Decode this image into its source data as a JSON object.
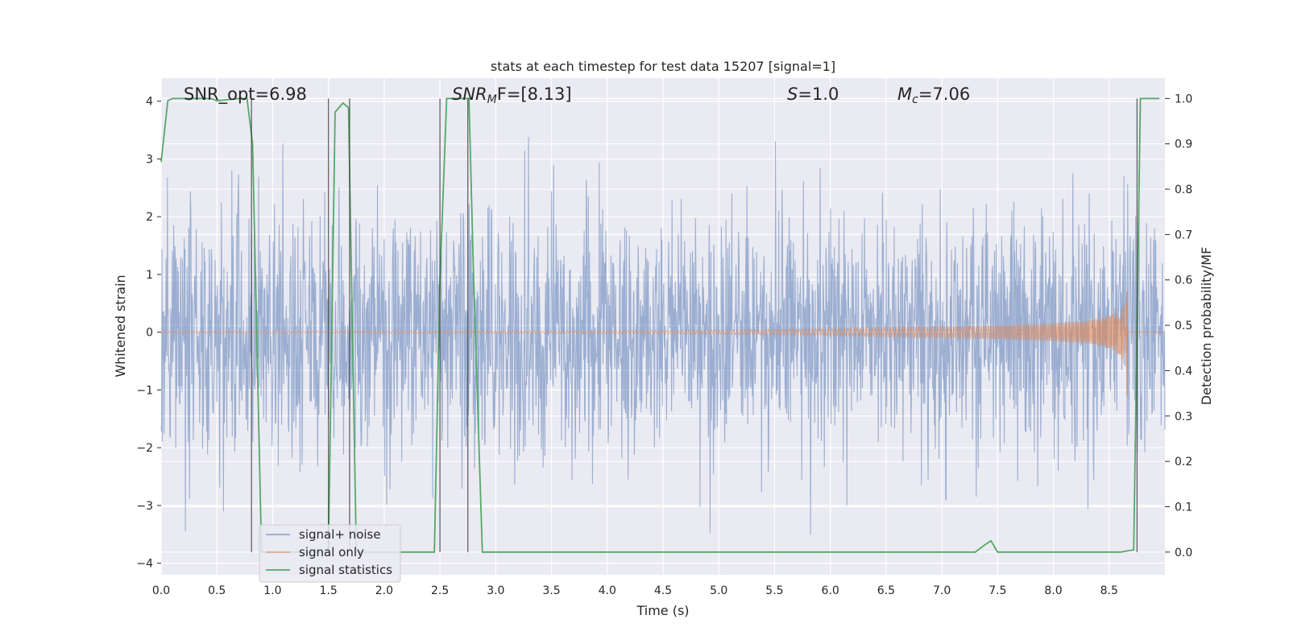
{
  "chart_data": {
    "type": "line",
    "title": "stats at each timestep for test data 15207 [signal=1]",
    "xlabel": "Time (s)",
    "ylabel": "Whitened strain",
    "ylabel_right": "Detection probability/MF",
    "xlim": [
      0.0,
      9.0
    ],
    "ylim": [
      -4.2,
      4.4
    ],
    "ylim_right": [
      -0.05,
      1.045
    ],
    "x_ticks": [
      "0.0",
      "0.5",
      "1.0",
      "1.5",
      "2.0",
      "2.5",
      "3.0",
      "3.5",
      "4.0",
      "4.5",
      "5.0",
      "5.5",
      "6.0",
      "6.5",
      "7.0",
      "7.5",
      "8.0",
      "8.5"
    ],
    "y_ticks": [
      "4",
      "3",
      "2",
      "1",
      "0",
      "−1",
      "−2",
      "−3",
      "−4"
    ],
    "y_right_ticks": [
      "1.0",
      "0.9",
      "0.8",
      "0.7",
      "0.6",
      "0.5",
      "0.4",
      "0.3",
      "0.2",
      "0.1",
      "0.0"
    ],
    "grid": true,
    "legend_position": "lower-left",
    "annotations": {
      "snr_opt": "SNR_opt=6.98",
      "snr_mf_italic": "SNR",
      "snr_mf_sub": "M",
      "snr_mf_rest": "F=[8.13]",
      "s_italic": "S",
      "s_rest": "=1.0",
      "mc_italic": "M",
      "mc_sub": "c",
      "mc_rest": "=7.06"
    },
    "series": [
      {
        "name": "signal+ noise",
        "color": "#4c72b0",
        "description_ref": "whitened noisy strain, approximately Gaussian with peaks near ±3.5"
      },
      {
        "name": "signal only",
        "color": "#dd8452",
        "envelope": {
          "x": [
            0.0,
            2.0,
            4.0,
            5.0,
            6.0,
            7.0,
            7.5,
            8.0,
            8.3,
            8.5,
            8.6,
            8.66
          ],
          "amplitude": [
            0.01,
            0.015,
            0.02,
            0.035,
            0.06,
            0.1,
            0.12,
            0.16,
            0.2,
            0.28,
            0.4,
            0.7
          ]
        }
      },
      {
        "name": "signal statistics",
        "color": "#55a868",
        "x": [
          0.0,
          0.06,
          0.1,
          0.2,
          0.45,
          0.5,
          0.7,
          0.77,
          0.8,
          0.82,
          0.9,
          1.0,
          1.5,
          1.56,
          1.63,
          1.68,
          1.75,
          1.8,
          2.4,
          2.45,
          2.5,
          2.56,
          2.6,
          2.7,
          2.76,
          2.8,
          2.88,
          3.0,
          7.3,
          7.38,
          7.44,
          7.5,
          7.6,
          8.6,
          8.72,
          8.78,
          8.8,
          8.95
        ],
        "values": [
          0.86,
          0.995,
          1.0,
          1.0,
          1.0,
          0.995,
          1.0,
          1.0,
          0.94,
          0.9,
          0.0,
          0.0,
          0.0,
          0.97,
          0.99,
          0.98,
          0.0,
          0.0,
          0.0,
          0.0,
          0.6,
          1.0,
          1.0,
          1.0,
          1.0,
          0.62,
          0.0,
          0.0,
          0.0,
          0.015,
          0.025,
          0.0,
          0.0,
          0.0,
          0.005,
          1.0,
          1.0,
          1.0
        ]
      }
    ],
    "vertical_markers_x": [
      0.81,
      1.5,
      1.69,
      2.5,
      2.75,
      8.75
    ]
  }
}
